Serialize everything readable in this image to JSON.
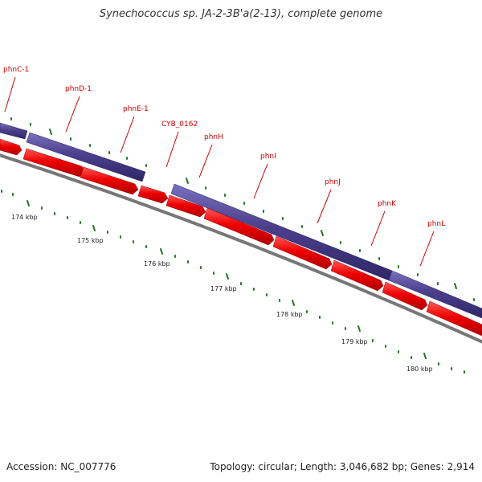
{
  "title": "Synechococcus sp. JA-2-3B'a(2-13), complete genome",
  "footer": {
    "accession": "Accession: NC_007776",
    "stats": "Topology: circular; Length: 3,046,682 bp; Genes: 2,914"
  },
  "colors": {
    "reverse_strand": "#4b3f8c",
    "forward_strand": "#ee0000",
    "backbone": "#777777",
    "tick": "#227722",
    "label": "#cc0000"
  },
  "gene_labels": [
    "phnC-1",
    "phnD-1",
    "phnE-1",
    "CYB_0162",
    "phnH",
    "phnI",
    "phnJ",
    "phnK",
    "phnL"
  ],
  "kbp_labels": [
    "174 kbp",
    "175 kbp",
    "176 kbp",
    "177 kbp",
    "178 kbp",
    "179 kbp",
    "180 kbp"
  ]
}
